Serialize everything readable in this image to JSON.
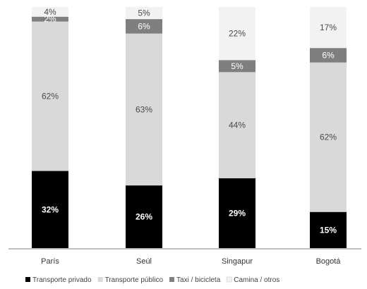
{
  "chart_data": {
    "type": "bar",
    "stacked": true,
    "normalized": true,
    "categories": [
      "París",
      "Seúl",
      "Singapur",
      "Bogotá"
    ],
    "series": [
      {
        "name": "Transporte privado",
        "values": [
          32,
          26,
          29,
          15
        ],
        "labels": [
          "32%",
          "26%",
          "29%",
          "15%"
        ],
        "color": "#000000"
      },
      {
        "name": "Transporte público",
        "values": [
          62,
          63,
          44,
          62
        ],
        "labels": [
          "62%",
          "63%",
          "44%",
          "62%"
        ],
        "color": "#d9d9d9"
      },
      {
        "name": "Taxi / bicicleta",
        "values": [
          2,
          6,
          5,
          6
        ],
        "labels": [
          "2%",
          "6%",
          "5%",
          "6%"
        ],
        "color": "#7f7f7f"
      },
      {
        "name": "Camina / otros",
        "values": [
          4,
          5,
          22,
          17
        ],
        "labels": [
          "4%",
          "5%",
          "22%",
          "17%"
        ],
        "color": "#f2f2f2"
      }
    ],
    "ylim": [
      0,
      100
    ],
    "grid": false,
    "legend_position": "bottom"
  }
}
